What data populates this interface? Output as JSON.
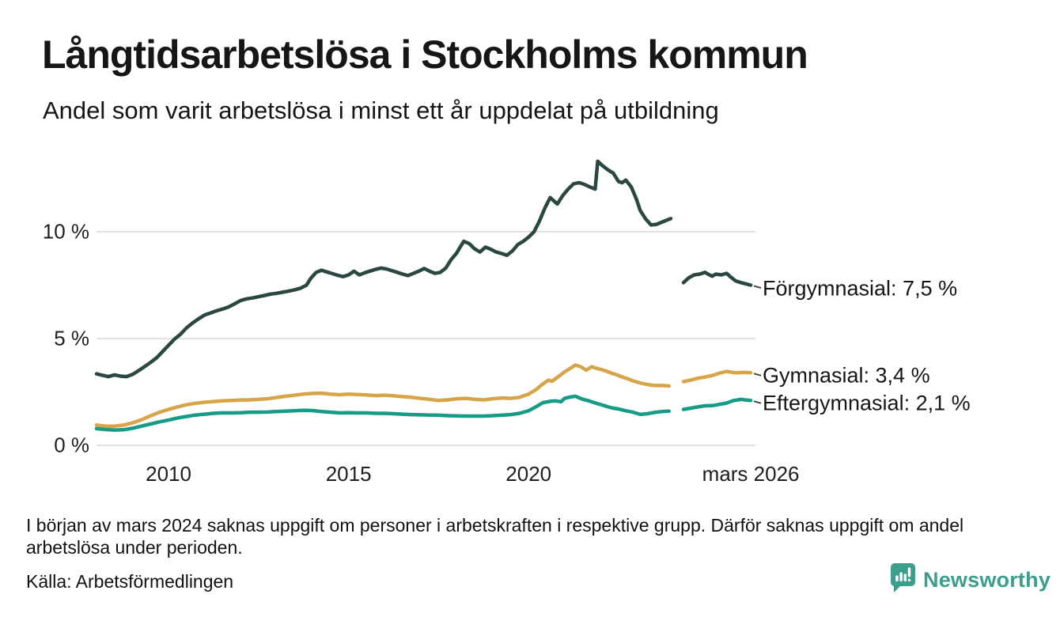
{
  "header": {
    "title": "Långtidsarbetslösa i Stockholms kommun",
    "subtitle": "Andel som varit arbetslösa i minst ett år uppdelat på utbildning"
  },
  "footer": {
    "footnote": "I början av mars 2024 saknas uppgift om personer i arbetskraften i respektive grupp. Därför saknas uppgift om andel arbetslösa under perioden.",
    "source": "Källa: Arbetsförmedlingen",
    "brand": {
      "name": "Newsworthy",
      "icon": "speech-bubble-bar-chart-icon",
      "color": "#3d9e8e"
    }
  },
  "chart_data": {
    "type": "line",
    "title": "Långtidsarbetslösa i Stockholms kommun",
    "subtitle": "Andel som varit arbetslösa i minst ett år uppdelat på utbildning",
    "xlim": [
      2008,
      2026.3
    ],
    "ylim": [
      0,
      13.5
    ],
    "grid": "horizontal",
    "grid_color": "#e2e2e2",
    "y_ticks": [
      {
        "value": 0,
        "label": "0 %"
      },
      {
        "value": 5,
        "label": "5 %"
      },
      {
        "value": 10,
        "label": "10 %"
      }
    ],
    "x_ticks": [
      {
        "value": 2010,
        "label": "2010"
      },
      {
        "value": 2015,
        "label": "2015"
      },
      {
        "value": 2020,
        "label": "2020"
      },
      {
        "value": 2026.17,
        "label": "mars 2026"
      }
    ],
    "gap_note": "values missing from early March 2024 (see footnote)",
    "series": [
      {
        "name": "Förgymnasial",
        "label": "Förgymnasial: 7,5 %",
        "final_value": 7.5,
        "color": "#2b4742",
        "points": [
          [
            2008.0,
            3.35
          ],
          [
            2008.17,
            3.28
          ],
          [
            2008.33,
            3.22
          ],
          [
            2008.5,
            3.3
          ],
          [
            2008.67,
            3.24
          ],
          [
            2008.83,
            3.22
          ],
          [
            2009.0,
            3.32
          ],
          [
            2009.17,
            3.5
          ],
          [
            2009.33,
            3.68
          ],
          [
            2009.5,
            3.88
          ],
          [
            2009.67,
            4.1
          ],
          [
            2009.83,
            4.38
          ],
          [
            2010.0,
            4.68
          ],
          [
            2010.17,
            4.98
          ],
          [
            2010.33,
            5.2
          ],
          [
            2010.5,
            5.5
          ],
          [
            2010.67,
            5.73
          ],
          [
            2010.83,
            5.92
          ],
          [
            2011.0,
            6.1
          ],
          [
            2011.17,
            6.2
          ],
          [
            2011.33,
            6.3
          ],
          [
            2011.5,
            6.38
          ],
          [
            2011.67,
            6.48
          ],
          [
            2011.83,
            6.62
          ],
          [
            2012.0,
            6.78
          ],
          [
            2012.17,
            6.86
          ],
          [
            2012.33,
            6.9
          ],
          [
            2012.5,
            6.96
          ],
          [
            2012.67,
            7.02
          ],
          [
            2012.83,
            7.08
          ],
          [
            2013.0,
            7.12
          ],
          [
            2013.17,
            7.17
          ],
          [
            2013.33,
            7.22
          ],
          [
            2013.5,
            7.28
          ],
          [
            2013.67,
            7.36
          ],
          [
            2013.83,
            7.5
          ],
          [
            2013.95,
            7.82
          ],
          [
            2014.1,
            8.1
          ],
          [
            2014.25,
            8.2
          ],
          [
            2014.4,
            8.12
          ],
          [
            2014.55,
            8.04
          ],
          [
            2014.7,
            7.96
          ],
          [
            2014.85,
            7.9
          ],
          [
            2015.0,
            7.98
          ],
          [
            2015.15,
            8.15
          ],
          [
            2015.3,
            7.98
          ],
          [
            2015.45,
            8.08
          ],
          [
            2015.6,
            8.16
          ],
          [
            2015.75,
            8.24
          ],
          [
            2015.9,
            8.3
          ],
          [
            2016.05,
            8.26
          ],
          [
            2016.2,
            8.18
          ],
          [
            2016.35,
            8.1
          ],
          [
            2016.5,
            8.02
          ],
          [
            2016.65,
            7.95
          ],
          [
            2016.8,
            8.05
          ],
          [
            2016.95,
            8.15
          ],
          [
            2017.1,
            8.28
          ],
          [
            2017.25,
            8.15
          ],
          [
            2017.4,
            8.05
          ],
          [
            2017.55,
            8.1
          ],
          [
            2017.7,
            8.3
          ],
          [
            2017.85,
            8.7
          ],
          [
            2018.0,
            9.0
          ],
          [
            2018.1,
            9.28
          ],
          [
            2018.2,
            9.55
          ],
          [
            2018.35,
            9.45
          ],
          [
            2018.5,
            9.2
          ],
          [
            2018.65,
            9.05
          ],
          [
            2018.8,
            9.28
          ],
          [
            2018.95,
            9.18
          ],
          [
            2019.1,
            9.05
          ],
          [
            2019.25,
            8.98
          ],
          [
            2019.4,
            8.9
          ],
          [
            2019.55,
            9.1
          ],
          [
            2019.7,
            9.4
          ],
          [
            2019.85,
            9.55
          ],
          [
            2020.0,
            9.75
          ],
          [
            2020.15,
            10.0
          ],
          [
            2020.3,
            10.5
          ],
          [
            2020.45,
            11.1
          ],
          [
            2020.6,
            11.6
          ],
          [
            2020.7,
            11.45
          ],
          [
            2020.8,
            11.3
          ],
          [
            2020.95,
            11.7
          ],
          [
            2021.1,
            12.0
          ],
          [
            2021.25,
            12.25
          ],
          [
            2021.4,
            12.3
          ],
          [
            2021.55,
            12.22
          ],
          [
            2021.7,
            12.1
          ],
          [
            2021.85,
            12.0
          ],
          [
            2021.92,
            13.3
          ],
          [
            2022.05,
            13.1
          ],
          [
            2022.2,
            12.9
          ],
          [
            2022.35,
            12.75
          ],
          [
            2022.5,
            12.35
          ],
          [
            2022.6,
            12.3
          ],
          [
            2022.7,
            12.42
          ],
          [
            2022.85,
            12.1
          ],
          [
            2023.0,
            11.5
          ],
          [
            2023.1,
            11.0
          ],
          [
            2023.25,
            10.6
          ],
          [
            2023.4,
            10.32
          ],
          [
            2023.55,
            10.35
          ],
          [
            2023.7,
            10.45
          ],
          [
            2023.85,
            10.55
          ],
          [
            2023.95,
            10.62
          ],
          [
            2024.1,
            null
          ],
          [
            2024.3,
            7.62
          ],
          [
            2024.45,
            7.85
          ],
          [
            2024.6,
            7.98
          ],
          [
            2024.75,
            8.02
          ],
          [
            2024.9,
            8.1
          ],
          [
            2025.0,
            8.0
          ],
          [
            2025.1,
            7.92
          ],
          [
            2025.2,
            8.02
          ],
          [
            2025.35,
            7.98
          ],
          [
            2025.5,
            8.05
          ],
          [
            2025.6,
            7.9
          ],
          [
            2025.75,
            7.7
          ],
          [
            2025.9,
            7.62
          ],
          [
            2026.05,
            7.55
          ],
          [
            2026.17,
            7.5
          ]
        ]
      },
      {
        "name": "Gymnasial",
        "label": "Gymnasial: 3,4 %",
        "final_value": 3.4,
        "color": "#d6a449",
        "points": [
          [
            2008.0,
            0.95
          ],
          [
            2008.25,
            0.9
          ],
          [
            2008.5,
            0.9
          ],
          [
            2008.75,
            0.95
          ],
          [
            2009.0,
            1.05
          ],
          [
            2009.25,
            1.2
          ],
          [
            2009.5,
            1.38
          ],
          [
            2009.75,
            1.55
          ],
          [
            2010.0,
            1.68
          ],
          [
            2010.25,
            1.8
          ],
          [
            2010.5,
            1.9
          ],
          [
            2010.75,
            1.97
          ],
          [
            2011.0,
            2.02
          ],
          [
            2011.25,
            2.05
          ],
          [
            2011.5,
            2.08
          ],
          [
            2011.75,
            2.1
          ],
          [
            2012.0,
            2.12
          ],
          [
            2012.25,
            2.13
          ],
          [
            2012.5,
            2.15
          ],
          [
            2012.75,
            2.18
          ],
          [
            2013.0,
            2.24
          ],
          [
            2013.25,
            2.3
          ],
          [
            2013.5,
            2.35
          ],
          [
            2013.75,
            2.4
          ],
          [
            2014.0,
            2.43
          ],
          [
            2014.25,
            2.44
          ],
          [
            2014.5,
            2.4
          ],
          [
            2014.75,
            2.37
          ],
          [
            2015.0,
            2.4
          ],
          [
            2015.25,
            2.38
          ],
          [
            2015.5,
            2.36
          ],
          [
            2015.75,
            2.33
          ],
          [
            2016.0,
            2.35
          ],
          [
            2016.25,
            2.32
          ],
          [
            2016.5,
            2.28
          ],
          [
            2016.75,
            2.25
          ],
          [
            2017.0,
            2.2
          ],
          [
            2017.25,
            2.15
          ],
          [
            2017.5,
            2.1
          ],
          [
            2017.75,
            2.13
          ],
          [
            2018.0,
            2.18
          ],
          [
            2018.25,
            2.2
          ],
          [
            2018.5,
            2.16
          ],
          [
            2018.75,
            2.13
          ],
          [
            2019.0,
            2.18
          ],
          [
            2019.25,
            2.22
          ],
          [
            2019.5,
            2.2
          ],
          [
            2019.75,
            2.25
          ],
          [
            2020.0,
            2.4
          ],
          [
            2020.2,
            2.6
          ],
          [
            2020.4,
            2.88
          ],
          [
            2020.55,
            3.05
          ],
          [
            2020.65,
            3.0
          ],
          [
            2020.8,
            3.18
          ],
          [
            2021.0,
            3.44
          ],
          [
            2021.15,
            3.6
          ],
          [
            2021.3,
            3.76
          ],
          [
            2021.45,
            3.68
          ],
          [
            2021.6,
            3.52
          ],
          [
            2021.75,
            3.68
          ],
          [
            2021.9,
            3.6
          ],
          [
            2022.0,
            3.56
          ],
          [
            2022.15,
            3.48
          ],
          [
            2022.3,
            3.38
          ],
          [
            2022.45,
            3.3
          ],
          [
            2022.6,
            3.2
          ],
          [
            2022.75,
            3.12
          ],
          [
            2022.9,
            3.02
          ],
          [
            2023.1,
            2.92
          ],
          [
            2023.3,
            2.85
          ],
          [
            2023.5,
            2.8
          ],
          [
            2023.7,
            2.8
          ],
          [
            2023.9,
            2.78
          ],
          [
            2024.1,
            null
          ],
          [
            2024.3,
            2.98
          ],
          [
            2024.5,
            3.06
          ],
          [
            2024.7,
            3.14
          ],
          [
            2024.9,
            3.2
          ],
          [
            2025.1,
            3.27
          ],
          [
            2025.3,
            3.38
          ],
          [
            2025.5,
            3.46
          ],
          [
            2025.65,
            3.42
          ],
          [
            2025.8,
            3.4
          ],
          [
            2026.0,
            3.42
          ],
          [
            2026.17,
            3.4
          ]
        ]
      },
      {
        "name": "Eftergymnasial",
        "label": "Eftergymnasial: 2,1 %",
        "final_value": 2.1,
        "color": "#169b86",
        "points": [
          [
            2008.0,
            0.78
          ],
          [
            2008.25,
            0.74
          ],
          [
            2008.5,
            0.72
          ],
          [
            2008.75,
            0.73
          ],
          [
            2009.0,
            0.8
          ],
          [
            2009.25,
            0.9
          ],
          [
            2009.5,
            1.0
          ],
          [
            2009.75,
            1.1
          ],
          [
            2010.0,
            1.18
          ],
          [
            2010.25,
            1.28
          ],
          [
            2010.5,
            1.35
          ],
          [
            2010.75,
            1.42
          ],
          [
            2011.0,
            1.46
          ],
          [
            2011.25,
            1.5
          ],
          [
            2011.5,
            1.52
          ],
          [
            2011.75,
            1.52
          ],
          [
            2012.0,
            1.53
          ],
          [
            2012.25,
            1.55
          ],
          [
            2012.5,
            1.55
          ],
          [
            2012.75,
            1.56
          ],
          [
            2013.0,
            1.58
          ],
          [
            2013.25,
            1.6
          ],
          [
            2013.5,
            1.62
          ],
          [
            2013.75,
            1.64
          ],
          [
            2014.0,
            1.63
          ],
          [
            2014.25,
            1.58
          ],
          [
            2014.5,
            1.55
          ],
          [
            2014.75,
            1.52
          ],
          [
            2015.0,
            1.53
          ],
          [
            2015.25,
            1.52
          ],
          [
            2015.5,
            1.52
          ],
          [
            2015.75,
            1.5
          ],
          [
            2016.0,
            1.5
          ],
          [
            2016.25,
            1.48
          ],
          [
            2016.5,
            1.46
          ],
          [
            2016.75,
            1.44
          ],
          [
            2017.0,
            1.43
          ],
          [
            2017.25,
            1.42
          ],
          [
            2017.5,
            1.41
          ],
          [
            2017.75,
            1.39
          ],
          [
            2018.0,
            1.38
          ],
          [
            2018.25,
            1.37
          ],
          [
            2018.5,
            1.37
          ],
          [
            2018.75,
            1.37
          ],
          [
            2019.0,
            1.39
          ],
          [
            2019.25,
            1.41
          ],
          [
            2019.5,
            1.44
          ],
          [
            2019.75,
            1.5
          ],
          [
            2020.0,
            1.62
          ],
          [
            2020.2,
            1.8
          ],
          [
            2020.4,
            2.0
          ],
          [
            2020.6,
            2.06
          ],
          [
            2020.75,
            2.08
          ],
          [
            2020.9,
            2.04
          ],
          [
            2021.0,
            2.2
          ],
          [
            2021.15,
            2.26
          ],
          [
            2021.3,
            2.3
          ],
          [
            2021.5,
            2.16
          ],
          [
            2021.7,
            2.07
          ],
          [
            2021.9,
            1.96
          ],
          [
            2022.1,
            1.86
          ],
          [
            2022.3,
            1.76
          ],
          [
            2022.5,
            1.7
          ],
          [
            2022.7,
            1.62
          ],
          [
            2022.9,
            1.55
          ],
          [
            2023.1,
            1.45
          ],
          [
            2023.3,
            1.48
          ],
          [
            2023.5,
            1.54
          ],
          [
            2023.7,
            1.58
          ],
          [
            2023.9,
            1.6
          ],
          [
            2024.1,
            null
          ],
          [
            2024.3,
            1.68
          ],
          [
            2024.5,
            1.74
          ],
          [
            2024.7,
            1.8
          ],
          [
            2024.9,
            1.85
          ],
          [
            2025.1,
            1.86
          ],
          [
            2025.3,
            1.92
          ],
          [
            2025.5,
            1.98
          ],
          [
            2025.7,
            2.1
          ],
          [
            2025.9,
            2.15
          ],
          [
            2026.05,
            2.12
          ],
          [
            2026.17,
            2.1
          ]
        ]
      }
    ]
  }
}
